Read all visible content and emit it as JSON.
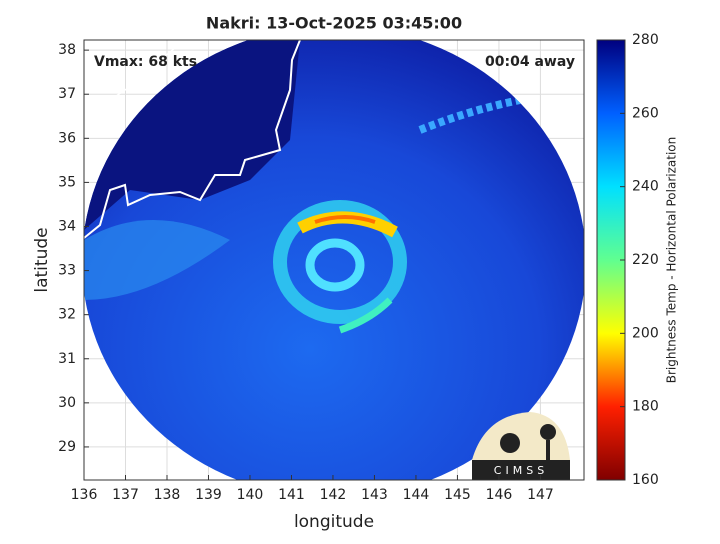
{
  "chart_data": {
    "type": "map",
    "title": "Nakri: 13-Oct-2025 03:45:00",
    "annotations": [
      "Vmax: 68 kts",
      "00:04 away"
    ],
    "logo": "CIMSS",
    "x_label": "longitude",
    "y_label": "latitude",
    "xlim": [
      136,
      148.05
    ],
    "xticks": [
      136,
      137,
      138,
      139,
      140,
      141,
      142,
      143,
      144,
      145,
      146,
      147
    ],
    "ylim": [
      28.25,
      38.23
    ],
    "yticks": [
      29,
      30,
      31,
      32,
      33,
      34,
      35,
      36,
      37,
      38
    ],
    "grid": true,
    "colorbar": {
      "label": "Brightness Temp - Horizontal Polarization",
      "clim": [
        160,
        280
      ],
      "ticks": [
        160,
        180,
        200,
        220,
        240,
        260,
        280
      ],
      "colormap": [
        "#800000",
        "#ff2000",
        "#ffff00",
        "#60ff90",
        "#00e0ff",
        "#0060ff",
        "#00007f"
      ]
    }
  }
}
